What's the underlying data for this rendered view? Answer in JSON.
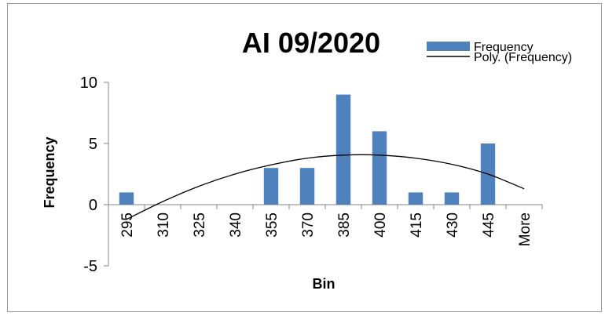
{
  "chart_data": {
    "type": "bar",
    "title": "AI 09/2020",
    "xlabel": "Bin",
    "ylabel": "Frequency",
    "categories": [
      "295",
      "310",
      "325",
      "340",
      "355",
      "370",
      "385",
      "400",
      "415",
      "430",
      "445",
      "More"
    ],
    "series": [
      {
        "name": "Frequency",
        "values": [
          1,
          0,
          0,
          0,
          3,
          3,
          9,
          6,
          1,
          1,
          5,
          0
        ],
        "color": "#4f81bd"
      }
    ],
    "trendline": {
      "name": "Poly. (Frequency)",
      "type": "polynomial",
      "order": 2,
      "color": "#000000",
      "values": [
        -1.2,
        0.25,
        1.5,
        2.5,
        3.25,
        3.8,
        4.05,
        4.05,
        3.8,
        3.3,
        2.5,
        1.3
      ]
    },
    "yticks": [
      -5,
      0,
      5,
      10
    ],
    "ylim": [
      -5,
      10
    ],
    "grid": false,
    "legend": "top-right"
  }
}
